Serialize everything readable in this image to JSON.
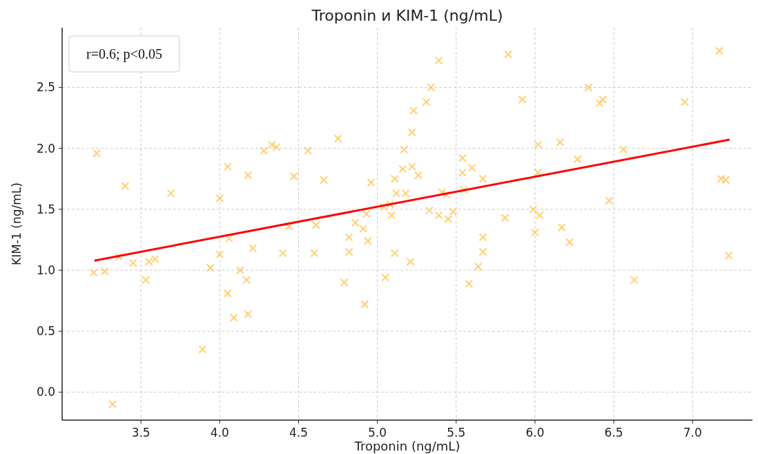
{
  "chart_data": {
    "type": "scatter",
    "title": "Troponin и KIM-1 (ng/mL)",
    "xlabel": "Troponin (ng/mL)",
    "ylabel": "KIM-1 (ng/mL)",
    "annotations": [
      "r=0.6; p<0.05"
    ],
    "xlim": [
      3.0,
      7.38
    ],
    "ylim": [
      -0.23,
      2.99
    ],
    "xticks": [
      {
        "value": 3.5,
        "label": "3.5"
      },
      {
        "value": 4,
        "label": "4.0"
      },
      {
        "value": 4.5,
        "label": "4.5"
      },
      {
        "value": 5,
        "label": "5.0"
      },
      {
        "value": 5.5,
        "label": "5.5"
      },
      {
        "value": 6,
        "label": "6.0"
      },
      {
        "value": 6.5,
        "label": "6.5"
      },
      {
        "value": 7,
        "label": "7.0"
      }
    ],
    "yticks": [
      {
        "value": 0,
        "label": "0.0"
      },
      {
        "value": 0.5,
        "label": "0.5"
      },
      {
        "value": 1,
        "label": "1.0"
      },
      {
        "value": 1.5,
        "label": "1.5"
      },
      {
        "value": 2,
        "label": "2.0"
      },
      {
        "value": 2.5,
        "label": "2.5"
      }
    ],
    "grid": true,
    "series": [
      {
        "marker": "cross",
        "color": "#ffc34f",
        "x": [
          3.2,
          3.27,
          3.36,
          3.45,
          3.53,
          3.55,
          3.59,
          3.32,
          3.89,
          3.94,
          4.0,
          4.06,
          4.05,
          4.09,
          4.13,
          4.17,
          4.18,
          4.21,
          4.4,
          4.44,
          4.61,
          4.6,
          4.79,
          4.82,
          4.82,
          4.86,
          4.91,
          4.94,
          4.92,
          5.05,
          5.11,
          3.22,
          3.4,
          3.69,
          4.0,
          4.05,
          4.18,
          4.28,
          4.33,
          4.36,
          4.47,
          4.56,
          4.66,
          4.75,
          4.96,
          5.11,
          5.12,
          5.09,
          4.93,
          5.17,
          5.22,
          5.04,
          5.08,
          5.39,
          5.83,
          7.17,
          5.34,
          5.31,
          6.34,
          5.92,
          6.43,
          6.41,
          6.95,
          5.23,
          5.22,
          5.16,
          5.26,
          5.18,
          5.33,
          5.39,
          5.45,
          5.48,
          5.41,
          5.44,
          5.54,
          5.54,
          5.6,
          5.55,
          5.67,
          5.81,
          5.67,
          6.0,
          5.99,
          6.03,
          6.17,
          6.02,
          6.16,
          6.27,
          6.56,
          6.02,
          6.47,
          7.18,
          7.21,
          5.21,
          5.58,
          5.64,
          5.67,
          6.22,
          6.63,
          7.23
        ],
        "values": [
          0.98,
          0.99,
          1.11,
          1.06,
          0.92,
          1.07,
          1.09,
          -0.1,
          0.35,
          1.02,
          1.13,
          1.26,
          0.81,
          0.61,
          1.0,
          0.92,
          0.64,
          1.18,
          1.14,
          1.36,
          1.37,
          1.14,
          0.9,
          1.27,
          1.15,
          1.39,
          1.34,
          1.24,
          0.72,
          0.94,
          1.14,
          1.96,
          1.69,
          1.63,
          1.59,
          1.85,
          1.78,
          1.98,
          2.03,
          2.01,
          1.77,
          1.98,
          1.74,
          2.08,
          1.72,
          1.75,
          1.63,
          1.45,
          1.46,
          1.99,
          1.85,
          1.52,
          1.54,
          2.72,
          2.77,
          2.8,
          2.5,
          2.38,
          2.5,
          2.4,
          2.4,
          2.37,
          2.38,
          2.31,
          2.13,
          1.83,
          1.78,
          1.63,
          1.49,
          1.45,
          1.42,
          1.48,
          1.64,
          1.62,
          1.92,
          1.8,
          1.84,
          1.66,
          1.75,
          1.43,
          1.27,
          1.31,
          1.5,
          1.45,
          1.35,
          2.03,
          2.05,
          1.91,
          1.99,
          1.8,
          1.57,
          1.75,
          1.74,
          1.07,
          0.89,
          1.03,
          1.15,
          1.23,
          0.92,
          1.12
        ]
      },
      {
        "type": "line",
        "color": "#ff0000",
        "x": [
          3.21,
          7.23
        ],
        "values": [
          1.08,
          2.07
        ]
      }
    ]
  }
}
